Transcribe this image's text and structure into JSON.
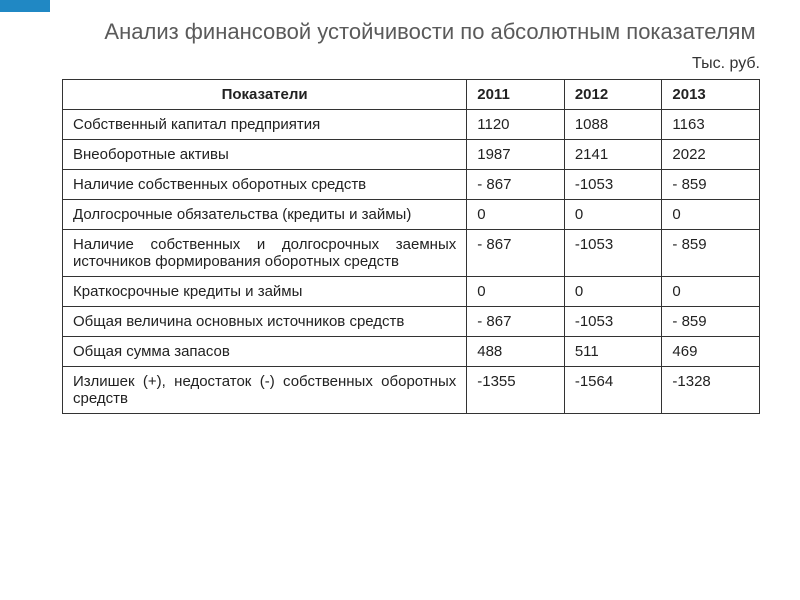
{
  "accent_color": "#2088c4",
  "title": "Анализ финансовой устойчивости по абсолютным показателям",
  "unit_label": "Тыс. руб.",
  "table": {
    "columns": [
      "Показатели",
      "2011",
      "2012",
      "2013"
    ],
    "rows": [
      [
        "Собственный капитал предприятия",
        "1120",
        "1088",
        "1163"
      ],
      [
        "Внеоборотные активы",
        "1987",
        "2141",
        "2022"
      ],
      [
        "Наличие собственных оборотных средств",
        "- 867",
        "-1053",
        "- 859"
      ],
      [
        "Долгосрочные обязательства (кредиты и займы)",
        "0",
        "0",
        "0"
      ],
      [
        "Наличие собственных и долгосрочных заемных источников формирования оборотных средств",
        "- 867",
        "-1053",
        "- 859"
      ],
      [
        "Краткосрочные кредиты и займы",
        "0",
        "0",
        "0"
      ],
      [
        "Общая величина основных источников средств",
        "- 867",
        "-1053",
        "- 859"
      ],
      [
        "Общая сумма запасов",
        "488",
        "511",
        "469"
      ],
      [
        "Излишек (+), недостаток (-) собственных оборотных средств",
        "-1355",
        "-1564",
        "-1328"
      ]
    ],
    "justify_rows": [
      3,
      4,
      8
    ]
  }
}
